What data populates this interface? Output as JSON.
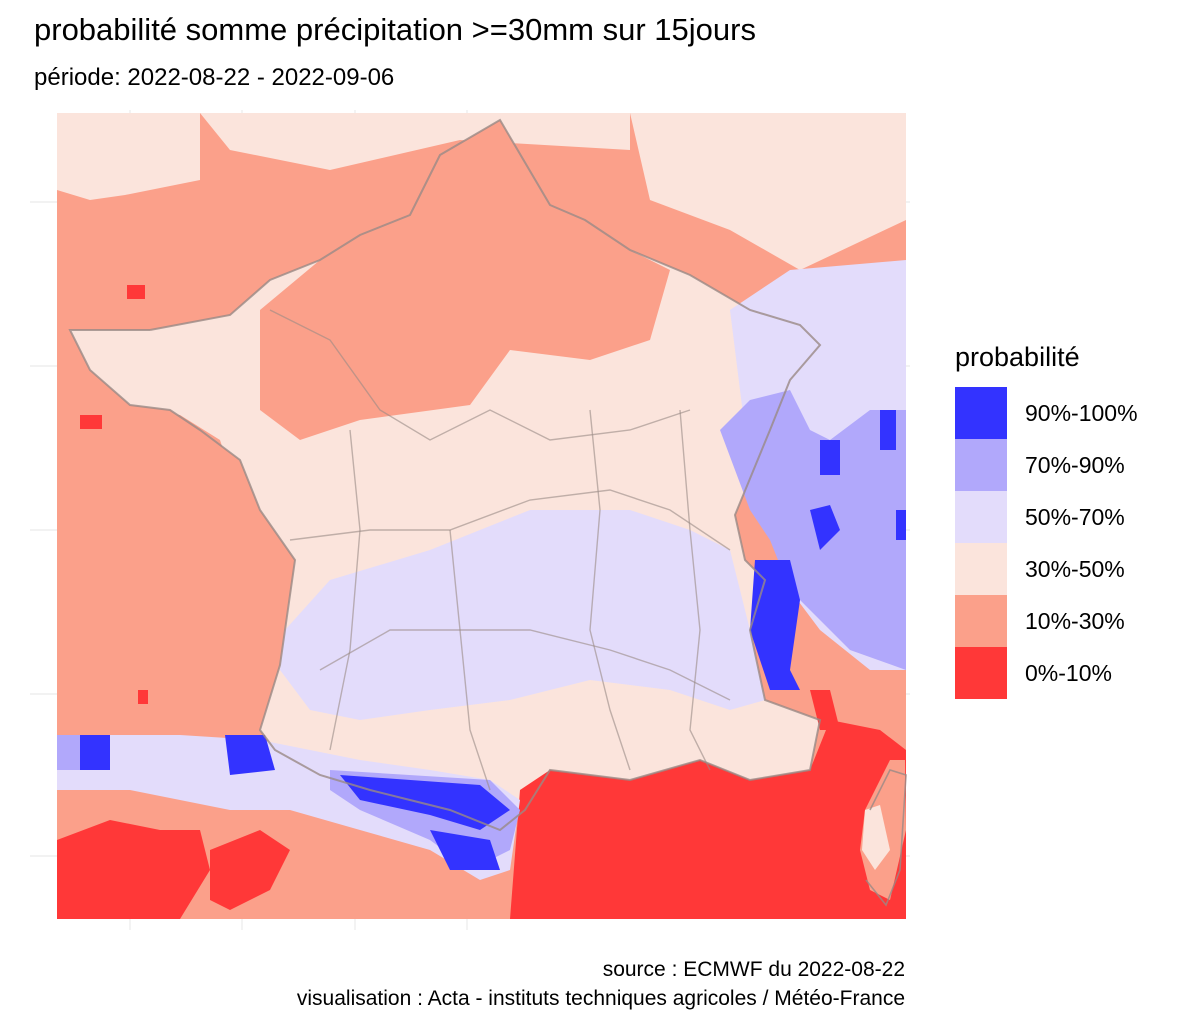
{
  "title": "probabilité somme précipitation >=30mm sur 15jours",
  "subtitle": "période: 2022-08-22 - 2022-09-06",
  "legend": {
    "title": "probabilité",
    "items": [
      {
        "label": "90%-100%",
        "color": "#3333ff"
      },
      {
        "label": "70%-90%",
        "color": "#b1a8fb"
      },
      {
        "label": "50%-70%",
        "color": "#e3dcfb"
      },
      {
        "label": "30%-50%",
        "color": "#fbe4dc"
      },
      {
        "label": "10%-30%",
        "color": "#fba08a"
      },
      {
        "label": "0%-10%",
        "color": "#ff3838"
      }
    ]
  },
  "source": "source : ECMWF du 2022-08-22",
  "visualisation": "visualisation : Acta - instituts techniques agricoles / Météo-France",
  "map": {
    "region": "France",
    "panel_background": "#ffffff",
    "gridline_color": "#ebebeb",
    "boundary_color": "#9a8a86",
    "ocean_category": "10%-30%",
    "land_default_category": "30%-50%"
  }
}
